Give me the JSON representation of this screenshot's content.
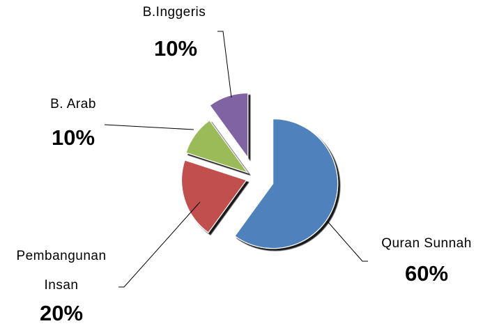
{
  "chart_data": {
    "type": "pie",
    "categories": [
      "Quran Sunnah",
      "Pembangunan Insan",
      "B. Arab",
      "B.Inggeris"
    ],
    "values": [
      60,
      20,
      10,
      10
    ],
    "value_labels": [
      "60%",
      "20%",
      "10%",
      "10%"
    ],
    "colors": [
      "#4f81bd",
      "#c0504d",
      "#9bbb59",
      "#8064a2"
    ]
  }
}
